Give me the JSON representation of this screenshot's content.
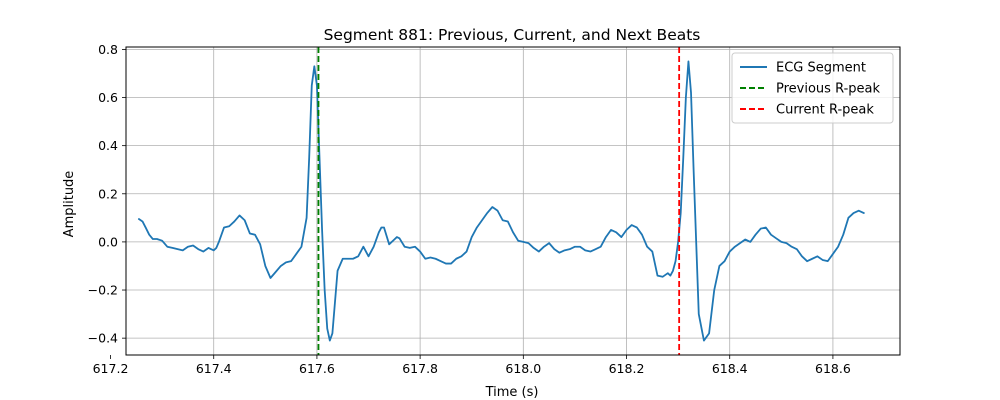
{
  "chart_data": {
    "type": "line",
    "title": "Segment 881: Previous, Current, and Next Beats",
    "xlabel": "Time (s)",
    "ylabel": "Amplitude",
    "xlim": [
      617.23,
      618.73
    ],
    "ylim": [
      -0.47,
      0.81
    ],
    "xticks": [
      617.2,
      617.4,
      617.6,
      617.8,
      618.0,
      618.2,
      618.4,
      618.6
    ],
    "xtick_labels": [
      "617.2",
      "617.4",
      "617.6",
      "617.8",
      "618.0",
      "618.2",
      "618.4",
      "618.6"
    ],
    "yticks": [
      -0.4,
      -0.2,
      0.0,
      0.2,
      0.4,
      0.6,
      0.8
    ],
    "ytick_labels": [
      "−0.4",
      "−0.2",
      "0.0",
      "0.2",
      "0.4",
      "0.6",
      "0.8"
    ],
    "grid": true,
    "legend_position": "top-right",
    "series": [
      {
        "name": "ECG Segment",
        "color": "#1f77b4",
        "style": "solid",
        "x": [
          617.255,
          617.262,
          617.268,
          617.275,
          617.282,
          617.29,
          617.3,
          617.31,
          617.32,
          617.33,
          617.34,
          617.35,
          617.36,
          617.37,
          617.38,
          617.39,
          617.395,
          617.4,
          617.405,
          617.41,
          617.42,
          617.43,
          617.44,
          617.45,
          617.46,
          617.47,
          617.48,
          617.49,
          617.5,
          617.51,
          617.52,
          617.53,
          617.54,
          617.55,
          617.56,
          617.57,
          617.58,
          617.585,
          617.59,
          617.595,
          617.6,
          617.605,
          617.61,
          617.615,
          617.62,
          617.625,
          617.63,
          617.635,
          617.64,
          617.65,
          617.66,
          617.67,
          617.68,
          617.69,
          617.7,
          617.71,
          617.72,
          617.725,
          617.73,
          617.74,
          617.75,
          617.755,
          617.76,
          617.77,
          617.78,
          617.79,
          617.8,
          617.81,
          617.82,
          617.83,
          617.84,
          617.85,
          617.86,
          617.87,
          617.88,
          617.89,
          617.9,
          617.91,
          617.92,
          617.93,
          617.94,
          617.95,
          617.96,
          617.97,
          617.98,
          617.99,
          618.0,
          618.01,
          618.02,
          618.03,
          618.04,
          618.05,
          618.06,
          618.07,
          618.08,
          618.09,
          618.1,
          618.11,
          618.12,
          618.13,
          618.14,
          618.15,
          618.16,
          618.17,
          618.18,
          618.19,
          618.2,
          618.21,
          618.22,
          618.23,
          618.24,
          618.25,
          618.26,
          618.27,
          618.28,
          618.285,
          618.29,
          618.295,
          618.3,
          618.305,
          618.31,
          618.315,
          618.32,
          618.325,
          618.33,
          618.335,
          618.34,
          618.35,
          618.36,
          618.37,
          618.38,
          618.39,
          618.4,
          618.41,
          618.42,
          618.43,
          618.44,
          618.45,
          618.46,
          618.47,
          618.48,
          618.49,
          618.5,
          618.51,
          618.52,
          618.53,
          618.54,
          618.55,
          618.56,
          618.57,
          618.58,
          618.59,
          618.6,
          618.61,
          618.62,
          618.63,
          618.64,
          618.65,
          618.66
        ],
        "y": [
          0.095,
          0.085,
          0.06,
          0.03,
          0.012,
          0.012,
          0.005,
          -0.02,
          -0.025,
          -0.03,
          -0.035,
          -0.02,
          -0.015,
          -0.03,
          -0.04,
          -0.025,
          -0.03,
          -0.035,
          -0.025,
          0.0,
          0.06,
          0.065,
          0.085,
          0.11,
          0.09,
          0.035,
          0.03,
          -0.01,
          -0.1,
          -0.15,
          -0.125,
          -0.1,
          -0.085,
          -0.08,
          -0.05,
          -0.02,
          0.1,
          0.35,
          0.65,
          0.73,
          0.65,
          0.35,
          0.05,
          -0.2,
          -0.36,
          -0.41,
          -0.38,
          -0.25,
          -0.12,
          -0.07,
          -0.07,
          -0.07,
          -0.06,
          -0.02,
          -0.06,
          -0.02,
          0.04,
          0.06,
          0.06,
          -0.01,
          0.01,
          0.02,
          0.015,
          -0.02,
          -0.025,
          -0.02,
          -0.04,
          -0.07,
          -0.065,
          -0.07,
          -0.08,
          -0.09,
          -0.09,
          -0.07,
          -0.06,
          -0.04,
          0.02,
          0.06,
          0.09,
          0.12,
          0.145,
          0.13,
          0.09,
          0.085,
          0.04,
          0.005,
          0.0,
          -0.005,
          -0.025,
          -0.04,
          -0.02,
          -0.005,
          -0.03,
          -0.045,
          -0.035,
          -0.03,
          -0.02,
          -0.02,
          -0.035,
          -0.04,
          -0.03,
          -0.02,
          0.02,
          0.05,
          0.04,
          0.02,
          0.05,
          0.07,
          0.06,
          0.03,
          -0.02,
          -0.04,
          -0.14,
          -0.145,
          -0.13,
          -0.14,
          -0.12,
          -0.08,
          0.0,
          0.12,
          0.35,
          0.6,
          0.75,
          0.62,
          0.3,
          0.0,
          -0.3,
          -0.41,
          -0.38,
          -0.2,
          -0.1,
          -0.08,
          -0.04,
          -0.02,
          -0.005,
          0.01,
          0.0,
          0.03,
          0.055,
          0.06,
          0.03,
          0.015,
          0.0,
          -0.005,
          -0.02,
          -0.03,
          -0.06,
          -0.08,
          -0.07,
          -0.06,
          -0.075,
          -0.08,
          -0.05,
          -0.02,
          0.03,
          0.1,
          0.12,
          0.13,
          0.12
        ]
      },
      {
        "name": "Previous R-peak",
        "color": "#008000",
        "style": "dashed",
        "x_value": 617.603
      },
      {
        "name": "Current R-peak",
        "color": "#ff0000",
        "style": "dashed",
        "x_value": 618.302
      }
    ]
  }
}
